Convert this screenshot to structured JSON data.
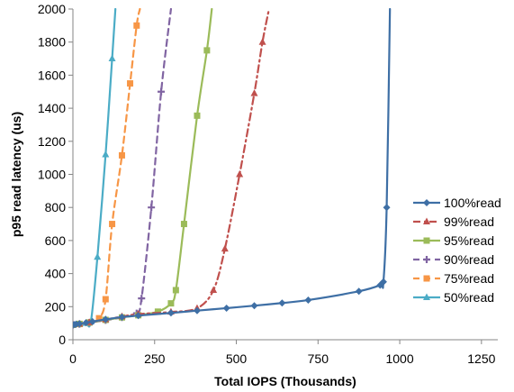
{
  "chart_data": {
    "type": "line",
    "title": "",
    "xlabel": "Total IOPS (Thousands)",
    "ylabel": "p95 read latency (us)",
    "xlim": [
      0,
      1300
    ],
    "ylim": [
      0,
      2000
    ],
    "x_ticks": [
      "0",
      "250",
      "500",
      "750",
      "1000",
      "1250"
    ],
    "y_ticks": [
      "0",
      "200",
      "400",
      "600",
      "800",
      "1000",
      "1200",
      "1400",
      "1600",
      "1800",
      "2000"
    ],
    "grid": false,
    "legend_position": "right",
    "series": [
      {
        "name": "100%read",
        "color": "#3e6fa5",
        "dash": "solid",
        "marker": "diamond",
        "points": [
          [
            0,
            90
          ],
          [
            5,
            92
          ],
          [
            10,
            94
          ],
          [
            20,
            97
          ],
          [
            40,
            103
          ],
          [
            60,
            110
          ],
          [
            100,
            123
          ],
          [
            150,
            137
          ],
          [
            200,
            146
          ],
          [
            300,
            162
          ],
          [
            380,
            176
          ],
          [
            470,
            191
          ],
          [
            555,
            206
          ],
          [
            640,
            222
          ],
          [
            720,
            240
          ],
          [
            875,
            293
          ],
          [
            940,
            330
          ],
          [
            950,
            350
          ],
          [
            960,
            800
          ],
          [
            970,
            2000
          ]
        ]
      },
      {
        "name": "99%read",
        "color": "#c0504d",
        "dash": "dashdot",
        "marker": "triangle",
        "points": [
          [
            0,
            90
          ],
          [
            20,
            96
          ],
          [
            50,
            105
          ],
          [
            100,
            122
          ],
          [
            150,
            140
          ],
          [
            200,
            155
          ],
          [
            300,
            168
          ],
          [
            380,
            190
          ],
          [
            430,
            300
          ],
          [
            465,
            550
          ],
          [
            510,
            1000
          ],
          [
            555,
            1490
          ],
          [
            580,
            1800
          ],
          [
            600,
            2000
          ]
        ]
      },
      {
        "name": "95%read",
        "color": "#9bbb59",
        "dash": "solid",
        "marker": "square",
        "points": [
          [
            0,
            90
          ],
          [
            20,
            96
          ],
          [
            50,
            104
          ],
          [
            100,
            120
          ],
          [
            150,
            135
          ],
          [
            200,
            148
          ],
          [
            260,
            170
          ],
          [
            300,
            220
          ],
          [
            315,
            300
          ],
          [
            340,
            700
          ],
          [
            380,
            1355
          ],
          [
            410,
            1750
          ],
          [
            425,
            2000
          ]
        ]
      },
      {
        "name": "90%read",
        "color": "#8064a2",
        "dash": "dashed",
        "marker": "cross",
        "points": [
          [
            0,
            90
          ],
          [
            20,
            95
          ],
          [
            50,
            103
          ],
          [
            100,
            118
          ],
          [
            150,
            135
          ],
          [
            195,
            160
          ],
          [
            210,
            250
          ],
          [
            240,
            800
          ],
          [
            270,
            1500
          ],
          [
            300,
            2000
          ]
        ]
      },
      {
        "name": "75%read",
        "color": "#f79646",
        "dash": "dashed",
        "marker": "square",
        "points": [
          [
            0,
            90
          ],
          [
            20,
            95
          ],
          [
            50,
            104
          ],
          [
            80,
            130
          ],
          [
            100,
            245
          ],
          [
            120,
            700
          ],
          [
            150,
            1115
          ],
          [
            175,
            1550
          ],
          [
            195,
            1900
          ],
          [
            205,
            2000
          ]
        ]
      },
      {
        "name": "50%read",
        "color": "#4bacc6",
        "dash": "solid",
        "marker": "triangle",
        "points": [
          [
            0,
            90
          ],
          [
            20,
            95
          ],
          [
            40,
            100
          ],
          [
            55,
            110
          ],
          [
            75,
            500
          ],
          [
            100,
            1120
          ],
          [
            120,
            1700
          ],
          [
            130,
            2000
          ]
        ]
      }
    ]
  }
}
